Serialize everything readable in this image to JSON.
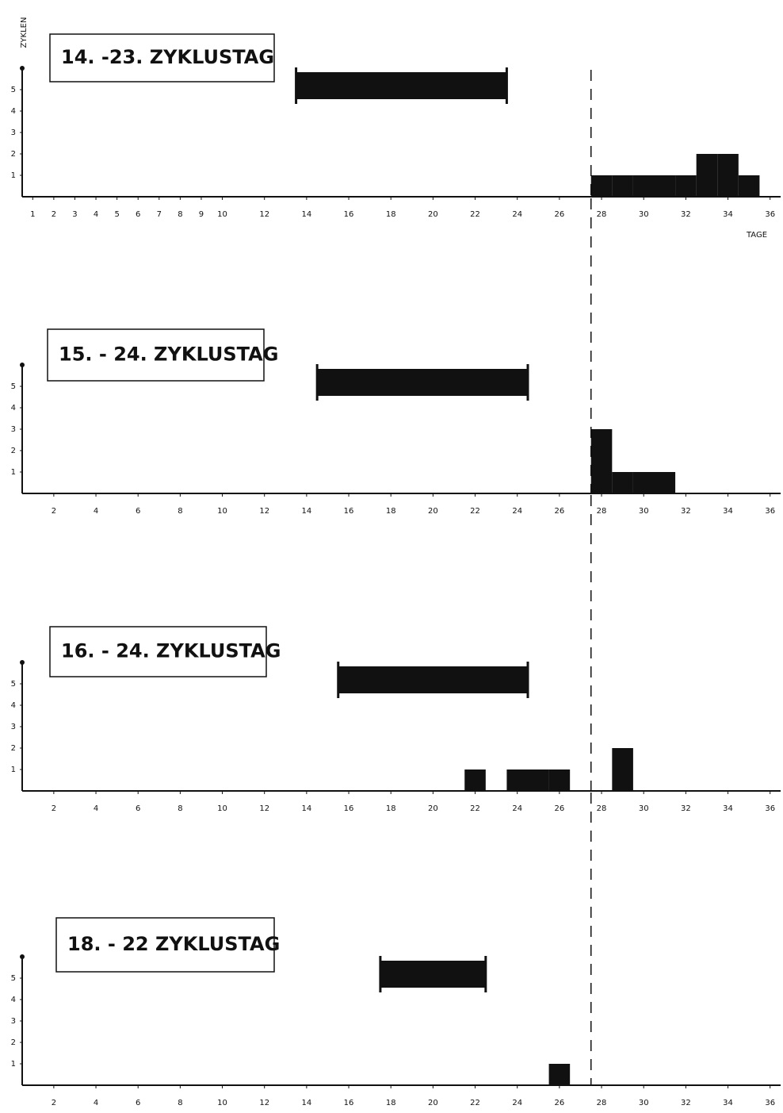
{
  "chart_data": [
    {
      "type": "bar",
      "title": "14. -23. ZYKLUSTAG",
      "y_label": "ZYKLEN",
      "x_label": "TAGE",
      "period": [
        14,
        23
      ],
      "x": [
        28,
        29,
        30,
        31,
        32,
        33,
        34,
        35
      ],
      "values": [
        1,
        1,
        1,
        1,
        1,
        2,
        2,
        1
      ],
      "color": "#111111",
      "xlim": [
        0.5,
        36.5
      ],
      "xticks": [
        1,
        2,
        3,
        4,
        5,
        6,
        7,
        8,
        9,
        10,
        12,
        14,
        16,
        18,
        20,
        22,
        24,
        26,
        28,
        30,
        32,
        34,
        36
      ],
      "ylim": [
        0,
        6
      ],
      "yticks": [
        1,
        2,
        3,
        4,
        5
      ],
      "reference_x": 28
    },
    {
      "type": "bar",
      "title": "15. - 24. ZYKLUSTAG",
      "period": [
        15,
        24
      ],
      "x": [
        28,
        29,
        30,
        31
      ],
      "values": [
        3,
        1,
        1,
        1
      ],
      "color": "#111111",
      "xlim": [
        0.5,
        36.5
      ],
      "xticks": [
        2,
        4,
        6,
        8,
        10,
        12,
        14,
        16,
        18,
        20,
        22,
        24,
        26,
        28,
        30,
        32,
        34,
        36
      ],
      "ylim": [
        0,
        6
      ],
      "yticks": [
        1,
        2,
        3,
        4,
        5
      ],
      "reference_x": 28
    },
    {
      "type": "bar",
      "title": "16. - 24. ZYKLUSTAG",
      "period": [
        16,
        24
      ],
      "x": [
        22,
        24,
        25,
        26,
        29
      ],
      "values": [
        1,
        1,
        1,
        1,
        2
      ],
      "color": "#111111",
      "xlim": [
        0.5,
        36.5
      ],
      "xticks": [
        2,
        4,
        6,
        8,
        10,
        12,
        14,
        16,
        18,
        20,
        22,
        24,
        26,
        28,
        30,
        32,
        34,
        36
      ],
      "ylim": [
        0,
        6
      ],
      "yticks": [
        1,
        2,
        3,
        4,
        5
      ],
      "reference_x": 28
    },
    {
      "type": "bar",
      "title": "18. - 22 ZYKLUSTAG",
      "period": [
        18,
        22
      ],
      "x": [
        26
      ],
      "values": [
        1
      ],
      "color": "#111111",
      "xlim": [
        0.5,
        36.5
      ],
      "xticks": [
        2,
        4,
        6,
        8,
        10,
        12,
        14,
        16,
        18,
        20,
        22,
        24,
        26,
        28,
        30,
        32,
        34,
        36
      ],
      "ylim": [
        0,
        6
      ],
      "yticks": [
        1,
        2,
        3,
        4,
        5
      ],
      "reference_x": 28
    }
  ]
}
